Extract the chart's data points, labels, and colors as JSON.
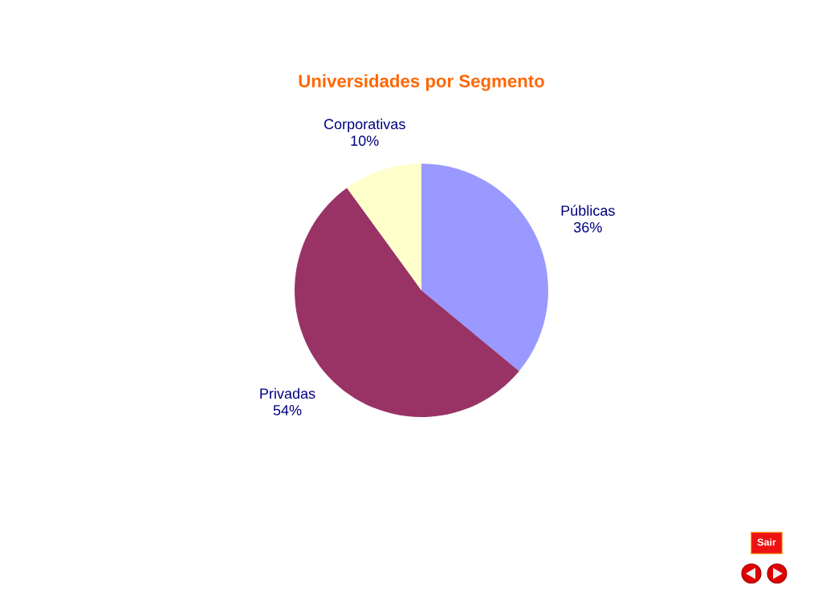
{
  "chart_data": {
    "type": "pie",
    "title": "Universidades por Segmento",
    "categories": [
      "Públicas",
      "Privadas",
      "Corporativas"
    ],
    "values": [
      36,
      54,
      10
    ],
    "value_labels": [
      "36%",
      "54%",
      "10%"
    ],
    "colors": [
      "#9999ff",
      "#993366",
      "#ffffcc"
    ],
    "annotations": [
      "Sair"
    ]
  }
}
